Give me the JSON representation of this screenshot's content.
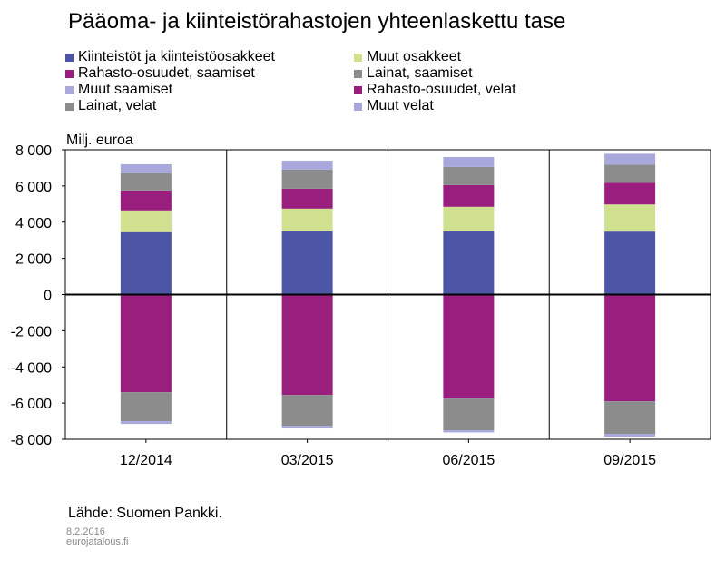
{
  "title": "Pääoma- ja kiinteistörahastojen yhteenlaskettu tase",
  "chart_data": {
    "type": "bar",
    "stacked": true,
    "title": "Pääoma- ja kiinteistörahastojen yhteenlaskettu tase",
    "ylabel": "Milj. euroa",
    "xlabel": "",
    "ylim": [
      -8000,
      8000
    ],
    "yticks": [
      8000,
      6000,
      4000,
      2000,
      0,
      -2000,
      -4000,
      -6000,
      -8000
    ],
    "ytick_labels": [
      "8 000",
      "6 000",
      "4 000",
      "2 000",
      "0",
      "-2 000",
      "-4 000",
      "-6 000",
      "-8 000"
    ],
    "categories": [
      "12/2014",
      "03/2015",
      "06/2015",
      "09/2015"
    ],
    "series": [
      {
        "name": "Kiinteistöt ja kiinteistöosakkeet",
        "side": "assets",
        "color": "#4d55a6",
        "values": [
          3450,
          3500,
          3500,
          3480
        ]
      },
      {
        "name": "Muut osakkeet",
        "side": "assets",
        "color": "#cfe08f",
        "values": [
          1200,
          1250,
          1350,
          1500
        ]
      },
      {
        "name": "Rahasto-osuudet, saamiset",
        "side": "assets",
        "color": "#9a1e7e",
        "values": [
          1100,
          1100,
          1200,
          1200
        ]
      },
      {
        "name": "Lainat, saamiset",
        "side": "assets",
        "color": "#8c8c8c",
        "values": [
          950,
          1050,
          1000,
          1000
        ]
      },
      {
        "name": "Muut saamiset",
        "side": "assets",
        "color": "#a8a8dc",
        "values": [
          500,
          500,
          550,
          600
        ]
      },
      {
        "name": "Rahasto-osuudet, velat",
        "side": "liabilities",
        "color": "#9a1e7e",
        "values": [
          -5400,
          -5550,
          -5750,
          -5900
        ]
      },
      {
        "name": "Lainat, velat",
        "side": "liabilities",
        "color": "#8c8c8c",
        "values": [
          -1600,
          -1700,
          -1750,
          -1800
        ]
      },
      {
        "name": "Muut velat",
        "side": "liabilities",
        "color": "#a8a8dc",
        "values": [
          -150,
          -150,
          -120,
          -150
        ]
      }
    ],
    "legend": [
      {
        "label": "Kiinteistöt ja kiinteistöosakkeet",
        "color": "#4d55a6"
      },
      {
        "label": "Muut osakkeet",
        "color": "#cfe08f"
      },
      {
        "label": "Rahasto-osuudet, saamiset",
        "color": "#9a1e7e"
      },
      {
        "label": "Lainat, saamiset",
        "color": "#8c8c8c"
      },
      {
        "label": "Muut saamiset",
        "color": "#a8a8dc"
      },
      {
        "label": "Rahasto-osuudet, velat",
        "color": "#9a1e7e"
      },
      {
        "label": "Lainat, velat",
        "color": "#8c8c8c"
      },
      {
        "label": "Muut velat",
        "color": "#a8a8dc"
      }
    ],
    "legend_placement": "top",
    "grid": "vertical separators between categories"
  },
  "source": "Lähde: Suomen Pankki.",
  "footer_date": "8.2.2016",
  "footer_site": "eurojatalous.fi"
}
